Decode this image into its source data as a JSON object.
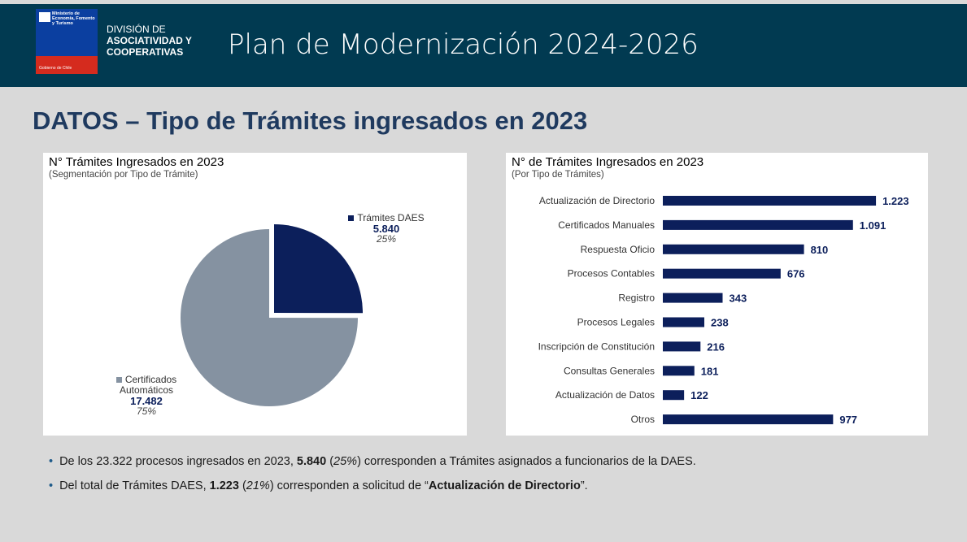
{
  "header": {
    "ministry": "Ministerio de Economía, Fomento y Turismo",
    "government": "Gobierno de Chile",
    "division_line1": "DIVISIÓN DE",
    "division_line2": "ASOCIATIVIDAD Y",
    "division_line3": "COOPERATIVAS",
    "title": "Plan de Modernización 2024-2026"
  },
  "title": "DATOS – Tipo de Trámites ingresados en 2023",
  "chart_data": [
    {
      "type": "pie",
      "title": "N° Trámites Ingresados en 2023",
      "subtitle": "(Segmentación por Tipo de Trámite)",
      "categories": [
        "Trámites DAES",
        "Certificados Automáticos"
      ],
      "values": [
        5840,
        17482
      ],
      "value_labels": [
        "5.840",
        "17.482"
      ],
      "percent_labels": [
        "25%",
        "75%"
      ],
      "colors": [
        "#0c1f5b",
        "#8592a1"
      ]
    },
    {
      "type": "bar",
      "orientation": "horizontal",
      "title": "N° de Trámites Ingresados en 2023",
      "subtitle": "(Por Tipo de Trámites)",
      "categories": [
        "Actualización de Directorio",
        "Certificados Manuales",
        "Respuesta Oficio",
        "Procesos Contables",
        "Registro",
        "Procesos Legales",
        "Inscripción de Constitución",
        "Consultas Generales",
        "Actualización de Datos",
        "Otros"
      ],
      "values": [
        1223,
        1091,
        810,
        676,
        343,
        238,
        216,
        181,
        122,
        977
      ],
      "value_labels": [
        "1.223",
        "1.091",
        "810",
        "676",
        "343",
        "238",
        "216",
        "181",
        "122",
        "977"
      ],
      "color": "#0c1f5b",
      "xlim": [
        0,
        1400
      ]
    }
  ],
  "bullets": [
    [
      {
        "text": "De los 23.322 procesos ingresados en 2023, ",
        "style": "normal"
      },
      {
        "text": "5.840",
        "style": "bold"
      },
      {
        "text": " (",
        "style": "normal"
      },
      {
        "text": "25%",
        "style": "italic"
      },
      {
        "text": ") corresponden a Trámites asignados a funcionarios de la DAES.",
        "style": "normal"
      }
    ],
    [
      {
        "text": "Del total de Trámites DAES, ",
        "style": "normal"
      },
      {
        "text": "1.223",
        "style": "bold"
      },
      {
        "text": " (",
        "style": "normal"
      },
      {
        "text": "21%",
        "style": "italic"
      },
      {
        "text": ") corresponden a solicitud de “",
        "style": "normal"
      },
      {
        "text": "Actualización de Directorio",
        "style": "bold"
      },
      {
        "text": "”.",
        "style": "normal"
      }
    ]
  ]
}
